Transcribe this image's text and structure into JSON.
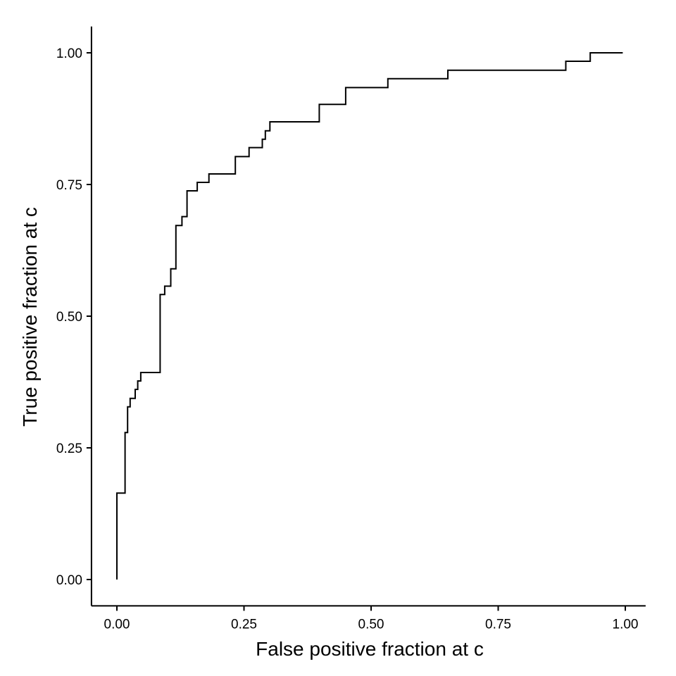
{
  "chart_data": {
    "type": "line",
    "title": "",
    "xlabel": "False positive fraction at c",
    "ylabel": "True positive fraction at c",
    "xlim": [
      -0.05,
      1.04
    ],
    "ylim": [
      -0.05,
      1.05
    ],
    "grid": false,
    "legend": "none",
    "xticks": [
      0,
      0.25,
      0.5,
      0.75,
      1.0
    ],
    "xtick_labels": [
      "0.00",
      "0.25",
      "0.50",
      "0.75",
      "1.00"
    ],
    "yticks": [
      0,
      0.25,
      0.5,
      0.75,
      1.0
    ],
    "ytick_labels": [
      "0.00",
      "0.25",
      "0.50",
      "0.75",
      "1.00"
    ],
    "series": [
      {
        "step": true,
        "color": "#000000",
        "x": [
          0.0,
          0.0,
          0.016,
          0.016,
          0.021,
          0.021,
          0.026,
          0.026,
          0.036,
          0.036,
          0.041,
          0.041,
          0.047,
          0.047,
          0.085,
          0.085,
          0.094,
          0.094,
          0.106,
          0.106,
          0.116,
          0.116,
          0.128,
          0.128,
          0.138,
          0.138,
          0.158,
          0.158,
          0.181,
          0.181,
          0.233,
          0.233,
          0.26,
          0.26,
          0.286,
          0.286,
          0.292,
          0.292,
          0.301,
          0.301,
          0.398,
          0.398,
          0.45,
          0.45,
          0.533,
          0.533,
          0.651,
          0.651,
          0.883,
          0.883,
          0.931,
          0.931,
          0.995
        ],
        "y": [
          0.0,
          0.164,
          0.164,
          0.279,
          0.279,
          0.328,
          0.328,
          0.344,
          0.344,
          0.361,
          0.361,
          0.377,
          0.377,
          0.393,
          0.393,
          0.541,
          0.541,
          0.557,
          0.557,
          0.59,
          0.59,
          0.672,
          0.672,
          0.689,
          0.689,
          0.738,
          0.738,
          0.754,
          0.754,
          0.77,
          0.77,
          0.803,
          0.803,
          0.82,
          0.82,
          0.836,
          0.836,
          0.852,
          0.852,
          0.869,
          0.869,
          0.902,
          0.902,
          0.934,
          0.934,
          0.951,
          0.951,
          0.967,
          0.967,
          0.984,
          0.984,
          1.0,
          1.0
        ]
      }
    ]
  }
}
